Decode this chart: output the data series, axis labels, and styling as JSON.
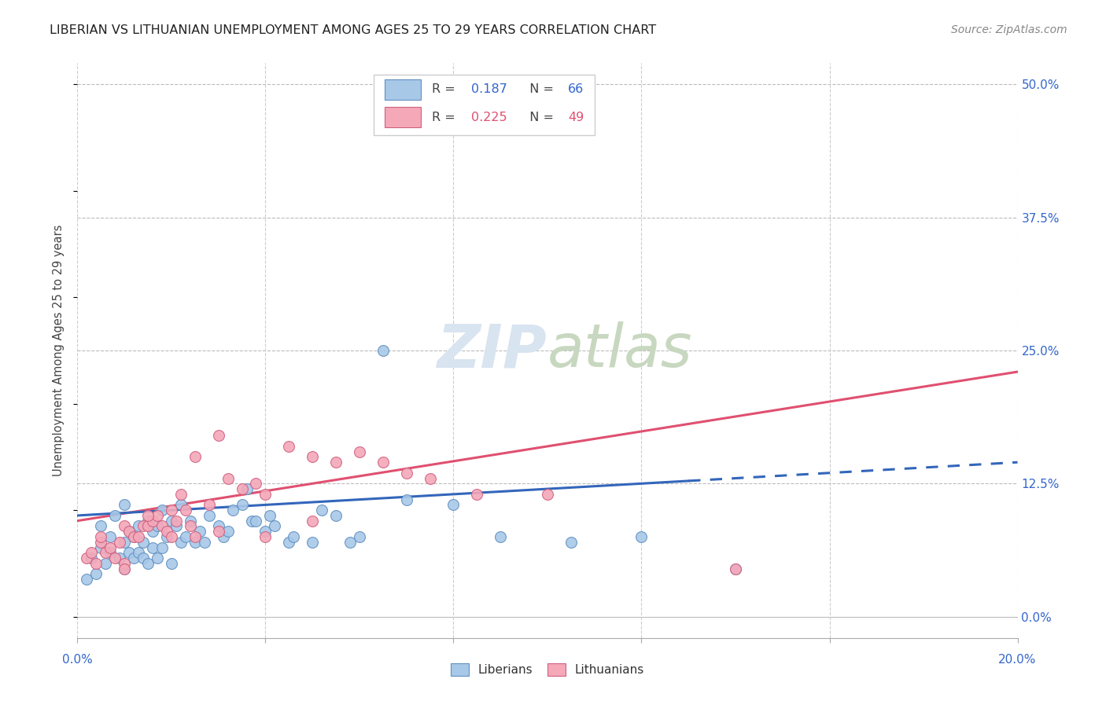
{
  "title": "LIBERIAN VS LITHUANIAN UNEMPLOYMENT AMONG AGES 25 TO 29 YEARS CORRELATION CHART",
  "source": "Source: ZipAtlas.com",
  "ylabel": "Unemployment Among Ages 25 to 29 years",
  "ytick_labels": [
    "0.0%",
    "12.5%",
    "25.0%",
    "37.5%",
    "50.0%"
  ],
  "ytick_values": [
    0.0,
    12.5,
    25.0,
    37.5,
    50.0
  ],
  "xlim": [
    0.0,
    20.0
  ],
  "ylim": [
    -2.0,
    52.0
  ],
  "liberian_color": "#a8c8e8",
  "lithuanian_color": "#f4a8b8",
  "liberian_edge": "#6090c0",
  "lithuanian_edge": "#d06080",
  "trend_blue_color": "#3366bb",
  "trend_pink_color": "#e05070",
  "background_color": "#ffffff",
  "legend_box_color": "#aac4e0",
  "legend_pink_color": "#f4a0b4",
  "watermark_color": "#d8e4f0",
  "liberian_x": [
    0.2,
    0.3,
    0.4,
    0.5,
    0.5,
    0.6,
    0.7,
    0.7,
    0.8,
    0.9,
    1.0,
    1.0,
    1.0,
    1.1,
    1.1,
    1.2,
    1.2,
    1.3,
    1.3,
    1.4,
    1.4,
    1.5,
    1.5,
    1.6,
    1.6,
    1.7,
    1.7,
    1.8,
    1.8,
    1.9,
    2.0,
    2.0,
    2.1,
    2.2,
    2.2,
    2.3,
    2.4,
    2.5,
    2.6,
    2.7,
    2.8,
    3.0,
    3.1,
    3.2,
    3.3,
    3.5,
    3.6,
    3.7,
    3.8,
    4.0,
    4.1,
    4.2,
    4.5,
    4.6,
    5.0,
    5.2,
    5.5,
    5.8,
    6.0,
    6.5,
    7.0,
    8.0,
    9.0,
    10.5,
    12.0,
    14.0
  ],
  "liberian_y": [
    3.5,
    5.5,
    4.0,
    6.5,
    8.5,
    5.0,
    6.0,
    7.5,
    9.5,
    5.5,
    4.5,
    7.0,
    10.5,
    6.0,
    8.0,
    5.5,
    7.5,
    6.0,
    8.5,
    5.5,
    7.0,
    5.0,
    9.0,
    6.5,
    8.0,
    5.5,
    8.5,
    6.5,
    10.0,
    7.5,
    5.0,
    9.0,
    8.5,
    7.0,
    10.5,
    7.5,
    9.0,
    7.0,
    8.0,
    7.0,
    9.5,
    8.5,
    7.5,
    8.0,
    10.0,
    10.5,
    12.0,
    9.0,
    9.0,
    8.0,
    9.5,
    8.5,
    7.0,
    7.5,
    7.0,
    10.0,
    9.5,
    7.0,
    7.5,
    25.0,
    11.0,
    10.5,
    7.5,
    7.0,
    7.5,
    4.5
  ],
  "lithuanian_x": [
    0.2,
    0.3,
    0.4,
    0.5,
    0.6,
    0.7,
    0.8,
    0.9,
    1.0,
    1.0,
    1.1,
    1.2,
    1.3,
    1.4,
    1.5,
    1.6,
    1.7,
    1.8,
    1.9,
    2.0,
    2.0,
    2.1,
    2.2,
    2.3,
    2.4,
    2.5,
    2.8,
    3.0,
    3.2,
    3.5,
    3.8,
    4.0,
    4.5,
    5.0,
    5.5,
    6.0,
    6.5,
    7.0,
    7.5,
    8.5,
    10.0,
    14.0,
    0.5,
    1.0,
    1.5,
    2.5,
    3.0,
    4.0,
    5.0
  ],
  "lithuanian_y": [
    5.5,
    6.0,
    5.0,
    7.0,
    6.0,
    6.5,
    5.5,
    7.0,
    5.0,
    8.5,
    8.0,
    7.5,
    7.5,
    8.5,
    8.5,
    9.0,
    9.5,
    8.5,
    8.0,
    7.5,
    10.0,
    9.0,
    11.5,
    10.0,
    8.5,
    15.0,
    10.5,
    17.0,
    13.0,
    12.0,
    12.5,
    11.5,
    16.0,
    15.0,
    14.5,
    15.5,
    14.5,
    13.5,
    13.0,
    11.5,
    11.5,
    4.5,
    7.5,
    4.5,
    9.5,
    7.5,
    8.0,
    7.5,
    9.0
  ],
  "trend_blue_x0": 0.0,
  "trend_blue_y0": 9.5,
  "trend_blue_x1": 20.0,
  "trend_blue_y1": 14.5,
  "trend_blue_solid_end": 13.0,
  "trend_pink_x0": 0.0,
  "trend_pink_y0": 9.0,
  "trend_pink_x1": 20.0,
  "trend_pink_y1": 23.0,
  "legend_R_blue": "0.187",
  "legend_N_blue": "66",
  "legend_R_pink": "0.225",
  "legend_N_pink": "49"
}
